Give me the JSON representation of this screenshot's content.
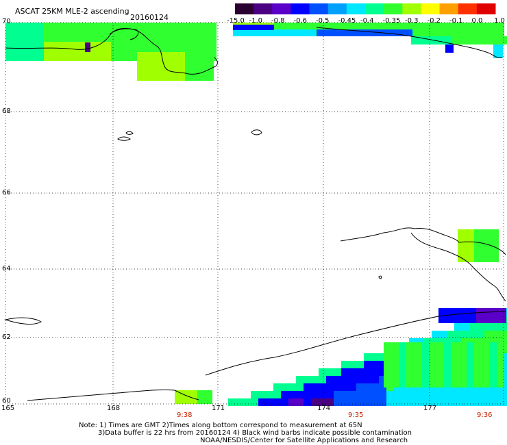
{
  "header": {
    "title": "ASCAT 25KM MLE-2 ascending",
    "date": "20160124"
  },
  "colorbar": {
    "labels": [
      "-15.0",
      "-1.0",
      "-0.8",
      "-0.6",
      "-0.5",
      "-0.45",
      "-0.4",
      "-0.35",
      "-0.3",
      "-0.2",
      "-0.1",
      "0.0",
      "1.0"
    ],
    "colors": [
      "#2a0030",
      "#4b0082",
      "#5a00c8",
      "#0000ff",
      "#0050ff",
      "#00a0ff",
      "#00e8ff",
      "#00ff90",
      "#30ff30",
      "#a0ff00",
      "#ffff00",
      "#ffa000",
      "#ff3000",
      "#e00000"
    ]
  },
  "map": {
    "lon_labels": [
      "165",
      "168",
      "171",
      "174",
      "177"
    ],
    "lat_labels": [
      "70",
      "68",
      "66",
      "64",
      "62",
      "60"
    ],
    "time_labels": [
      "9:38",
      "9:35",
      "9:36"
    ],
    "time_color": "#cc2200"
  },
  "footer": {
    "line1": "Note: 1) Times are GMT 2)Times along bottom correspond to measurement at 65N",
    "line2": "3)Data buffer is 22 hrs from 20160124 4) Black wind barbs indicate possible contamination",
    "line3": "NOAA/NESDIS/Center for Satellite Applications and Research"
  }
}
